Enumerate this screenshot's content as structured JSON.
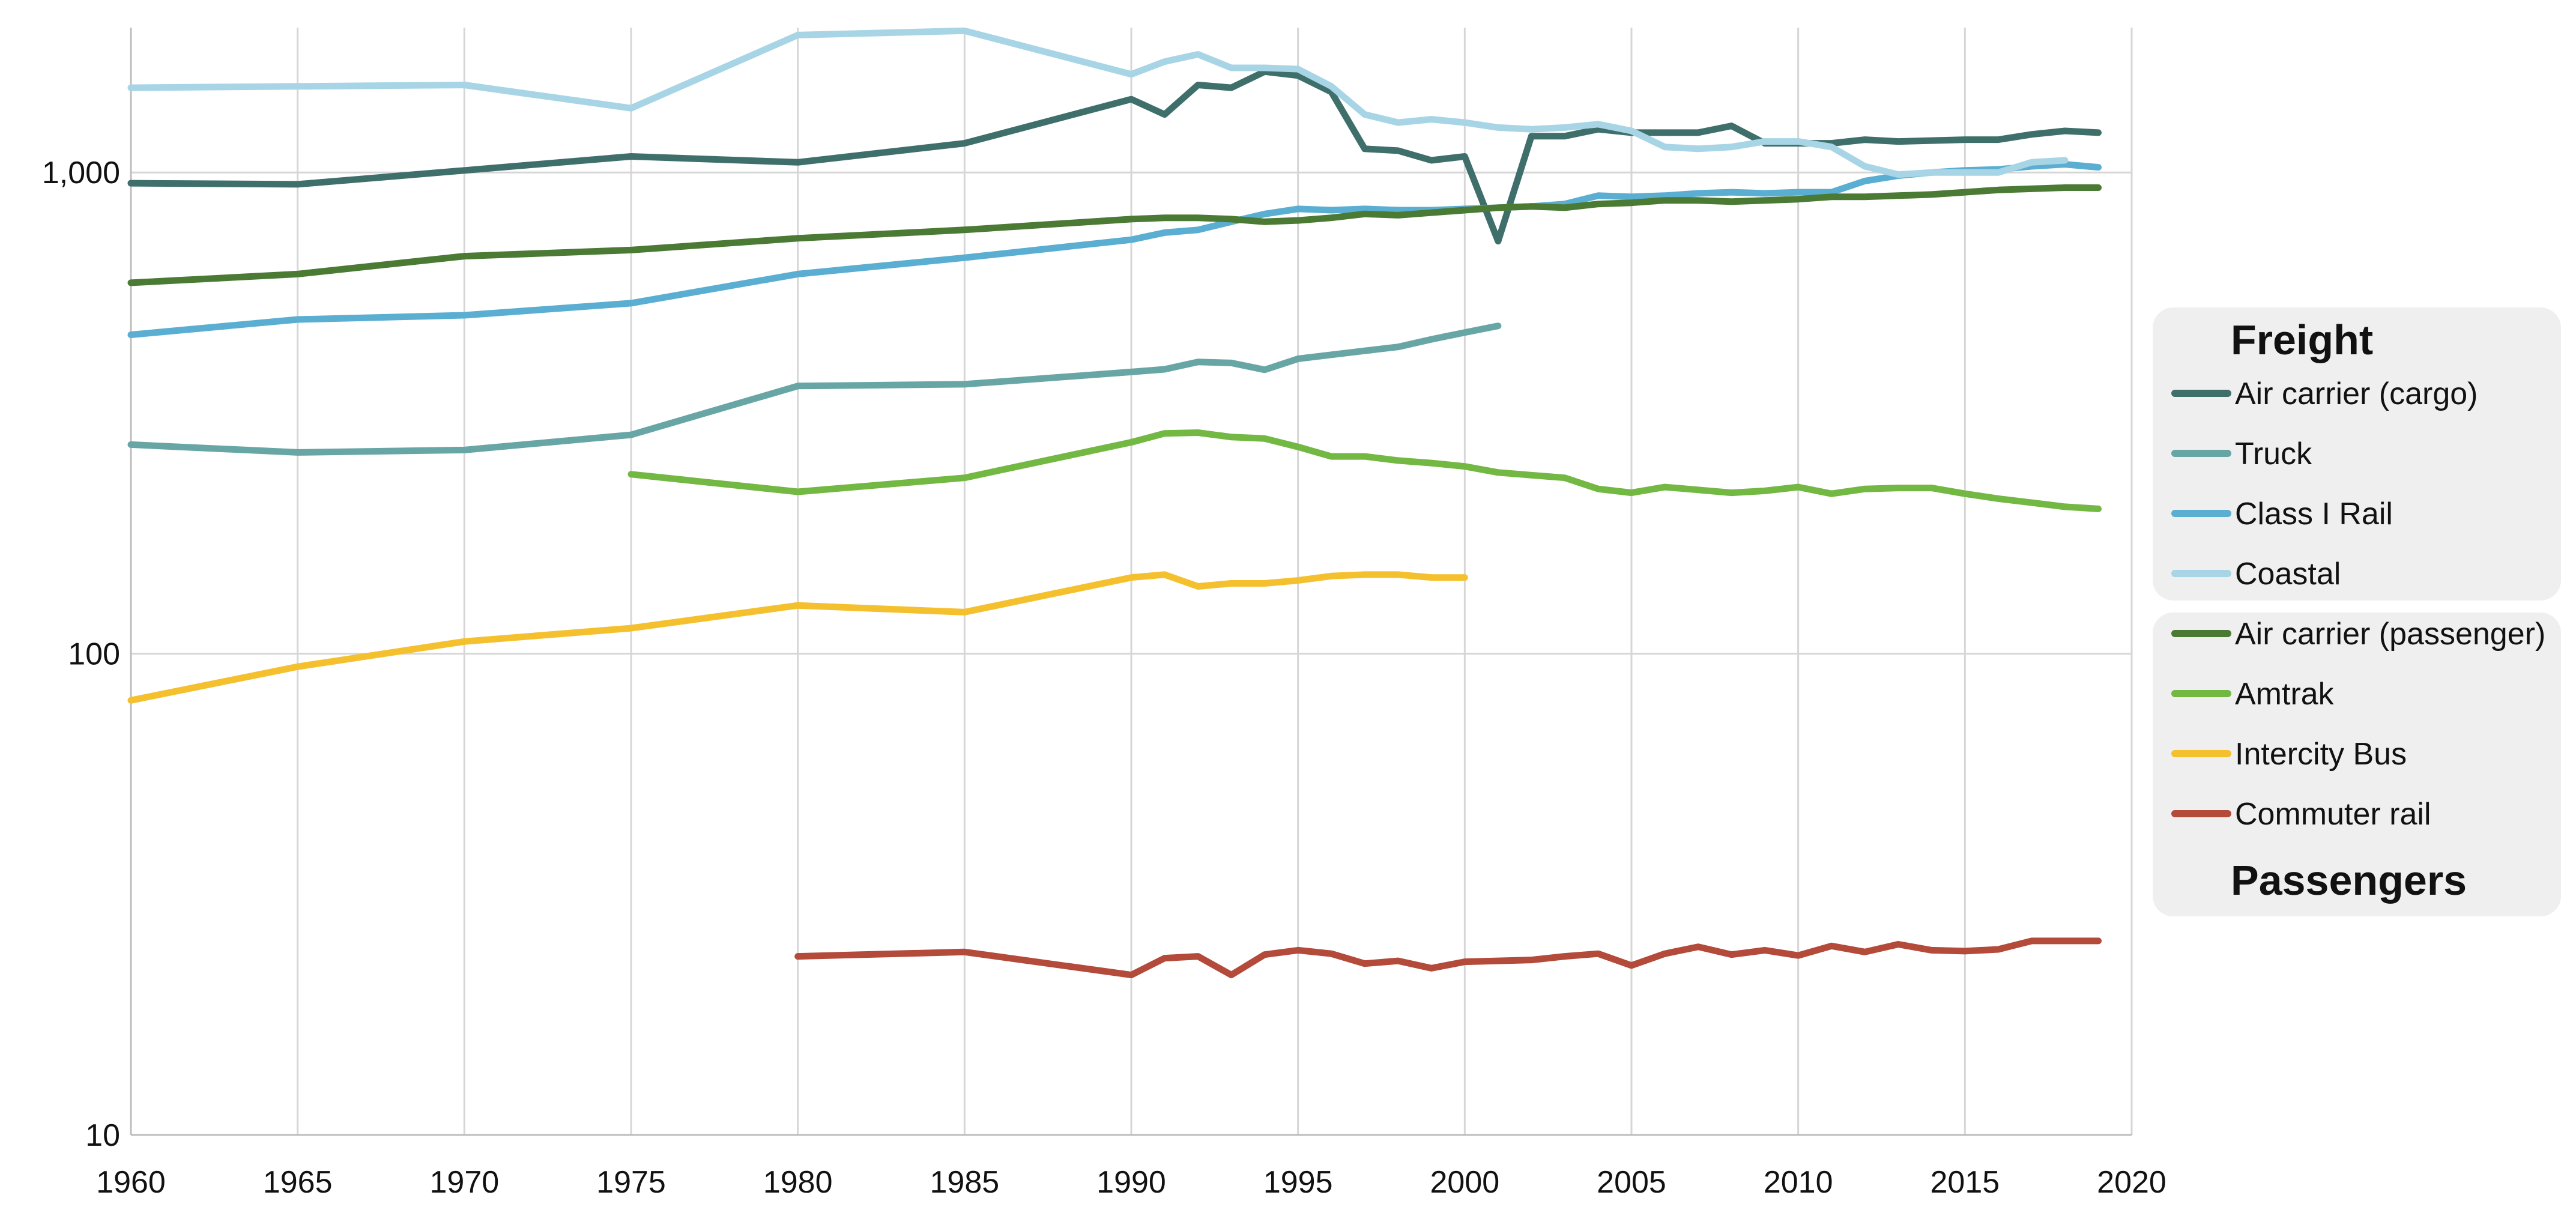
{
  "chart_data": {
    "type": "line",
    "title": "",
    "xlabel": "",
    "ylabel": "",
    "y_scale": "log",
    "xlim": [
      1960,
      2020
    ],
    "ylim": [
      10,
      2000
    ],
    "x_ticks": [
      "1960",
      "1965",
      "1970",
      "1975",
      "1980",
      "1985",
      "1990",
      "1995",
      "2000",
      "2005",
      "2010",
      "2015",
      "2020"
    ],
    "y_ticks": [
      {
        "value": 10,
        "label": "10"
      },
      {
        "value": 100,
        "label": "100"
      },
      {
        "value": 1000,
        "label": "1,000"
      }
    ],
    "grid": "on",
    "legend": {
      "position": "right",
      "group_titles": [
        "Freight",
        "Passengers"
      ]
    },
    "series": [
      {
        "name": "Air carrier (cargo)",
        "color": "#3f6f6b",
        "group": "Freight",
        "x": [
          1960,
          1965,
          1970,
          1975,
          1980,
          1985,
          1990,
          1991,
          1992,
          1993,
          1994,
          1995,
          1996,
          1997,
          1998,
          1999,
          2000,
          2001,
          2002,
          2003,
          2004,
          2005,
          2006,
          2007,
          2008,
          2009,
          2010,
          2011,
          2012,
          2013,
          2014,
          2015,
          2016,
          2017,
          2018,
          2019
        ],
        "values": [
          950,
          945,
          1010,
          1080,
          1050,
          1150,
          1420,
          1320,
          1520,
          1500,
          1620,
          1590,
          1470,
          1120,
          1110,
          1060,
          1080,
          720,
          1190,
          1190,
          1230,
          1210,
          1210,
          1210,
          1250,
          1150,
          1150,
          1150,
          1170,
          1160,
          1165,
          1170,
          1170,
          1200,
          1220,
          1210
        ]
      },
      {
        "name": "Truck",
        "color": "#68a6a6",
        "group": "Freight",
        "x": [
          1960,
          1965,
          1970,
          1975,
          1980,
          1985,
          1990,
          1991,
          1992,
          1993,
          1994,
          1995,
          1996,
          1997,
          1998,
          1999,
          2000,
          2001
        ],
        "values": [
          272,
          262,
          265,
          285,
          360,
          363,
          385,
          390,
          404,
          402,
          389,
          410,
          418,
          426,
          434,
          450,
          465,
          480
        ]
      },
      {
        "name": "Class I Rail",
        "color": "#5aaed2",
        "group": "Freight",
        "x": [
          1960,
          1965,
          1970,
          1975,
          1980,
          1985,
          1990,
          1991,
          1992,
          1993,
          1994,
          1995,
          1996,
          1997,
          1998,
          1999,
          2000,
          2001,
          2002,
          2003,
          2004,
          2005,
          2006,
          2007,
          2008,
          2009,
          2010,
          2011,
          2012,
          2013,
          2014,
          2015,
          2016,
          2017,
          2018,
          2019
        ],
        "values": [
          460,
          495,
          505,
          535,
          615,
          665,
          725,
          750,
          760,
          790,
          820,
          840,
          835,
          840,
          835,
          835,
          840,
          845,
          850,
          860,
          895,
          890,
          895,
          905,
          910,
          905,
          910,
          910,
          960,
          985,
          1000,
          1010,
          1015,
          1030,
          1040,
          1025
        ]
      },
      {
        "name": "Coastal",
        "color": "#a7d5e6",
        "group": "Freight",
        "x": [
          1960,
          1965,
          1970,
          1975,
          1980,
          1985,
          1990,
          1991,
          1992,
          1993,
          1994,
          1995,
          1996,
          1997,
          1998,
          1999,
          2000,
          2001,
          2002,
          2003,
          2004,
          2005,
          2006,
          2007,
          2008,
          2009,
          2010,
          2011,
          2012,
          2013,
          2014,
          2015,
          2016,
          2017,
          2018
        ],
        "values": [
          1500,
          1510,
          1520,
          1360,
          1930,
          1970,
          1600,
          1700,
          1760,
          1650,
          1650,
          1640,
          1510,
          1320,
          1270,
          1290,
          1270,
          1240,
          1230,
          1240,
          1260,
          1220,
          1130,
          1120,
          1130,
          1160,
          1160,
          1130,
          1030,
          990,
          1000,
          1000,
          1000,
          1050,
          1060
        ]
      },
      {
        "name": "Air carrier (passenger)",
        "color": "#4a7a34",
        "group": "Passengers",
        "x": [
          1960,
          1965,
          1970,
          1975,
          1980,
          1985,
          1990,
          1991,
          1992,
          1993,
          1994,
          1995,
          1996,
          1997,
          1998,
          1999,
          2000,
          2001,
          2002,
          2003,
          2004,
          2005,
          2006,
          2007,
          2008,
          2009,
          2010,
          2011,
          2012,
          2013,
          2014,
          2015,
          2016,
          2017,
          2018,
          2019
        ],
        "values": [
          590,
          615,
          670,
          690,
          730,
          760,
          800,
          805,
          805,
          800,
          790,
          795,
          805,
          820,
          815,
          825,
          835,
          845,
          850,
          845,
          860,
          865,
          875,
          875,
          870,
          875,
          880,
          890,
          890,
          895,
          900,
          910,
          920,
          925,
          930,
          930
        ]
      },
      {
        "name": "Amtrak",
        "color": "#72b843",
        "group": "Passengers",
        "x": [
          1975,
          1980,
          1985,
          1990,
          1991,
          1992,
          1993,
          1994,
          1995,
          1996,
          1997,
          1998,
          1999,
          2000,
          2001,
          2002,
          2003,
          2004,
          2005,
          2006,
          2007,
          2008,
          2009,
          2010,
          2011,
          2012,
          2013,
          2014,
          2015,
          2016,
          2017,
          2018,
          2019
        ],
        "values": [
          236,
          217,
          232,
          275,
          287,
          288,
          282,
          280,
          269,
          257,
          257,
          252,
          249,
          245,
          238,
          235,
          232,
          220,
          216,
          222,
          219,
          216,
          218,
          222,
          215,
          220,
          221,
          221,
          215,
          210,
          206,
          202,
          200
        ]
      },
      {
        "name": "Intercity Bus",
        "color": "#f4c02e",
        "group": "Passengers",
        "x": [
          1960,
          1965,
          1970,
          1975,
          1980,
          1985,
          1990,
          1991,
          1992,
          1993,
          1994,
          1995,
          1996,
          1997,
          1998,
          1999,
          2000
        ],
        "values": [
          80,
          94,
          106,
          113,
          126,
          122,
          144,
          146,
          138,
          140,
          140,
          142,
          145,
          146,
          146,
          144,
          144
        ]
      },
      {
        "name": "Commuter rail",
        "color": "#b34a3a",
        "group": "Passengers",
        "x": [
          1980,
          1985,
          1990,
          1991,
          1992,
          1993,
          1994,
          1995,
          1996,
          1997,
          1998,
          1999,
          2000,
          2001,
          2002,
          2003,
          2004,
          2005,
          2006,
          2007,
          2008,
          2009,
          2010,
          2011,
          2012,
          2013,
          2014,
          2015,
          2016,
          2017,
          2018,
          2019
        ],
        "values": [
          23.5,
          24,
          21.5,
          23.3,
          23.5,
          21.5,
          23.7,
          24.2,
          23.8,
          22.7,
          23,
          22.2,
          22.9,
          23,
          23.1,
          23.5,
          23.8,
          22.5,
          23.8,
          24.6,
          23.7,
          24.2,
          23.6,
          24.7,
          24,
          24.9,
          24.2,
          24.1,
          24.3,
          25.3,
          25.3,
          25.3
        ]
      }
    ]
  }
}
